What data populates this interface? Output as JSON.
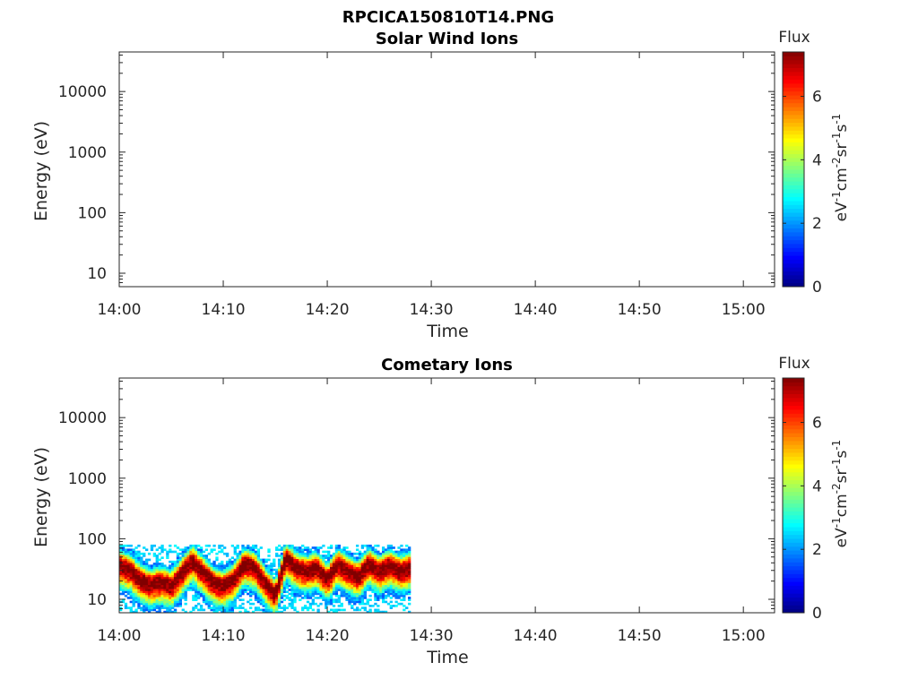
{
  "figure_title": "RPCICA150810T14.PNG",
  "colorbar": {
    "label": "Flux",
    "unit_parts": [
      "eV",
      "-1",
      "cm",
      "-2",
      "sr",
      "-1",
      "s",
      "-1"
    ],
    "ticks": [
      "0",
      "2",
      "4",
      "6"
    ],
    "range": [
      0,
      7.4
    ],
    "colormap": "jet"
  },
  "chart_data": [
    {
      "type": "heatmap",
      "title": "Solar Wind Ions",
      "xlabel": "Time",
      "ylabel": "Energy (eV)",
      "x_ticks": [
        "14:00",
        "14:10",
        "14:20",
        "14:30",
        "14:40",
        "14:50",
        "15:00"
      ],
      "y_ticks": [
        "10",
        "100",
        "1000",
        "10000"
      ],
      "xlim": [
        "14:00",
        "15:03"
      ],
      "ylim": [
        6,
        45000
      ],
      "y_scale": "log",
      "data": []
    },
    {
      "type": "heatmap",
      "title": "Cometary Ions",
      "xlabel": "Time",
      "ylabel": "Energy (eV)",
      "x_ticks": [
        "14:00",
        "14:10",
        "14:20",
        "14:30",
        "14:40",
        "14:50",
        "15:00"
      ],
      "y_ticks": [
        "10",
        "100",
        "1000",
        "10000"
      ],
      "xlim": [
        "14:00",
        "15:03"
      ],
      "ylim": [
        6,
        45000
      ],
      "y_scale": "log",
      "data_time_range": [
        "14:00",
        "14:28"
      ],
      "data_energy_range": [
        6,
        80
      ],
      "peak_energy_track": [
        {
          "t": "14:00",
          "e": 38
        },
        {
          "t": "14:01",
          "e": 32
        },
        {
          "t": "14:02",
          "e": 22
        },
        {
          "t": "14:03",
          "e": 18
        },
        {
          "t": "14:04",
          "e": 20
        },
        {
          "t": "14:05",
          "e": 17
        },
        {
          "t": "14:06",
          "e": 28
        },
        {
          "t": "14:07",
          "e": 45
        },
        {
          "t": "14:08",
          "e": 30
        },
        {
          "t": "14:09",
          "e": 20
        },
        {
          "t": "14:10",
          "e": 17
        },
        {
          "t": "14:11",
          "e": 22
        },
        {
          "t": "14:12",
          "e": 40
        },
        {
          "t": "14:13",
          "e": 35
        },
        {
          "t": "14:14",
          "e": 20
        },
        {
          "t": "14:15",
          "e": 12
        },
        {
          "t": "14:16",
          "e": 50
        },
        {
          "t": "14:17",
          "e": 35
        },
        {
          "t": "14:18",
          "e": 30
        },
        {
          "t": "14:19",
          "e": 35
        },
        {
          "t": "14:20",
          "e": 22
        },
        {
          "t": "14:21",
          "e": 40
        },
        {
          "t": "14:22",
          "e": 30
        },
        {
          "t": "14:23",
          "e": 25
        },
        {
          "t": "14:24",
          "e": 40
        },
        {
          "t": "14:25",
          "e": 30
        },
        {
          "t": "14:26",
          "e": 38
        },
        {
          "t": "14:27",
          "e": 30
        },
        {
          "t": "14:28",
          "e": 35
        }
      ]
    }
  ]
}
